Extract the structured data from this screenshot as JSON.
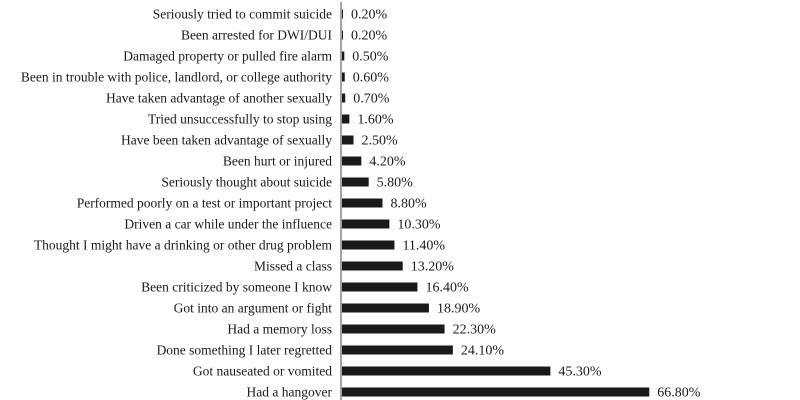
{
  "chart_data": {
    "type": "bar",
    "orientation": "horizontal",
    "title": "",
    "xlabel": "",
    "ylabel": "",
    "xlim": [
      0,
      100
    ],
    "grid": false,
    "legend": "none",
    "bar_color": "#1a1a1a",
    "categories": [
      "Seriously tried to commit suicide",
      "Been arrested for DWI/DUI",
      "Damaged property or pulled fire alarm",
      "Been in trouble with police, landlord, or college authority",
      "Have taken advantage of another sexually",
      "Tried unsuccessfully to stop using",
      "Have been taken advantage of sexually",
      "Been hurt or injured",
      "Seriously thought about suicide",
      "Performed poorly on a test or important project",
      "Driven a car while under the influence",
      "Thought I might have a drinking or other drug problem",
      "Missed a class",
      "Been criticized by someone I know",
      "Got into an argument or fight",
      "Had a memory loss",
      "Done something I later regretted",
      "Got nauseated or vomited",
      "Had a hangover"
    ],
    "values": [
      0.2,
      0.2,
      0.5,
      0.6,
      0.7,
      1.6,
      2.5,
      4.2,
      5.8,
      8.8,
      10.3,
      11.4,
      13.2,
      16.4,
      18.9,
      22.3,
      24.1,
      45.3,
      66.8
    ],
    "value_labels": [
      "0.20%",
      "0.20%",
      "0.50%",
      "0.60%",
      "0.70%",
      "1.60%",
      "2.50%",
      "4.20%",
      "5.80%",
      "8.80%",
      "10.30%",
      "11.40%",
      "13.20%",
      "16.40%",
      "18.90%",
      "22.30%",
      "24.10%",
      "45.30%",
      "66.80%"
    ]
  }
}
